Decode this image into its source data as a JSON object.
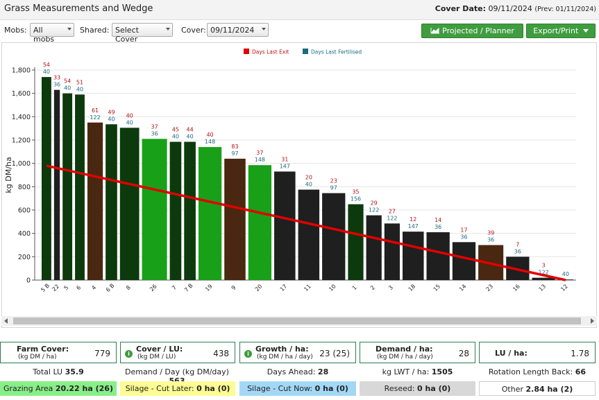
{
  "header": {
    "title": "Grass Measurements and Wedge",
    "cover_label": "Cover Date:",
    "cover_date": "09/11/2024",
    "prev": "(Prev: 01/11/2024)"
  },
  "filters": {
    "mobs_label": "Mobs:",
    "mobs_value": "All mobs",
    "shared_label": "Shared:",
    "shared_value": "Select Cover",
    "cover_label": "Cover:",
    "cover_value": "09/11/2024"
  },
  "buttons": {
    "projected": "Projected / Planner",
    "export": "Export/Print"
  },
  "colors": {
    "dark_green": "#0d3a0d",
    "bright_green": "#19a019",
    "brown": "#4a2710",
    "black": "#1f1f1f",
    "trend": "#e10000",
    "exit": "#b31212",
    "fert": "#1a6b80"
  },
  "chart_data": {
    "type": "bar",
    "ylabel": "kg DM/ha",
    "ylim": [
      0,
      1800
    ],
    "yticks": [
      "0",
      "200",
      "400",
      "600",
      "800",
      "1,000",
      "1,200",
      "1,400",
      "1,600",
      "1,800"
    ],
    "legend": [
      "Days Last Exit",
      "Days Last Fertilised"
    ],
    "legend_position": "top-center",
    "categories": [
      "5 B",
      "22",
      "5",
      "6",
      "4",
      "6 B",
      "8",
      "26",
      "7",
      "7 B",
      "19",
      "9",
      "20",
      "17",
      "11",
      "10",
      "1",
      "2",
      "3",
      "18",
      "15",
      "14",
      "23",
      "16",
      "13",
      "12"
    ],
    "values": [
      1740,
      1630,
      1600,
      1590,
      1350,
      1335,
      1305,
      1210,
      1185,
      1185,
      1140,
      1040,
      985,
      930,
      775,
      745,
      650,
      555,
      485,
      415,
      410,
      325,
      300,
      200,
      20,
      5
    ],
    "days_last_exit": [
      "54",
      "33",
      "54",
      "51",
      "61",
      "49",
      "40",
      "37",
      "45",
      "44",
      "40",
      "83",
      "37",
      "31",
      "20",
      "23",
      "35",
      "29",
      "27",
      "12",
      "14",
      "17",
      "39",
      "7",
      "3",
      ""
    ],
    "days_last_fertilised": [
      "40",
      "36",
      "40",
      "40",
      "122",
      "40",
      "40",
      "36",
      "40",
      "40",
      "148",
      "97",
      "148",
      "147",
      "40",
      "97",
      "156",
      "122",
      "122",
      "147",
      "36",
      "36",
      "36",
      "36",
      "122",
      "40"
    ],
    "bar_colors": [
      "dark_green",
      "black",
      "dark_green",
      "dark_green",
      "brown",
      "dark_green",
      "dark_green",
      "bright_green",
      "dark_green",
      "dark_green",
      "bright_green",
      "brown",
      "bright_green",
      "black",
      "black",
      "black",
      "dark_green",
      "black",
      "black",
      "black",
      "black",
      "black",
      "brown",
      "black",
      "black",
      "black"
    ],
    "trend": {
      "from": [
        0,
        980
      ],
      "to": [
        25,
        0
      ]
    }
  },
  "cards": {
    "farm_cover": {
      "label": "Farm Cover:",
      "sub": "(kg DM / ha)",
      "value": "779"
    },
    "cover_lu": {
      "label": "Cover / LU:",
      "sub": "(kg DM / LU)",
      "value": "438"
    },
    "growth": {
      "label": "Growth / ha:",
      "sub": "(kg DM / ha / day)",
      "value": "23 (25)"
    },
    "demand": {
      "label": "Demand / ha:",
      "sub": "(kg DM / ha / day)",
      "value": "28"
    },
    "lu_ha": {
      "label": "LU / ha:",
      "value": "1.78"
    }
  },
  "stats": {
    "total_lu": {
      "label": "Total LU",
      "value": "35.9"
    },
    "demand_day": {
      "label": "Demand / Day (kg DM/day)",
      "value": "563"
    },
    "days_ahead": {
      "label": "Days Ahead:",
      "value": "28"
    },
    "kg_lwt": {
      "label": "kg LWT / ha:",
      "value": "1505"
    },
    "rotation": {
      "label": "Rotation Length Back:",
      "value": "66"
    },
    "grazing": {
      "label": "Grazing Area",
      "value": "20.22 ha (26)"
    },
    "silage_later": {
      "label": "Silage - Cut Later:",
      "value": "0 ha (0)"
    },
    "silage_now": {
      "label": "Silage - Cut Now:",
      "value": "0 ha (0)"
    },
    "reseed": {
      "label": "Reseed:",
      "value": "0 ha (0)"
    },
    "other": {
      "label": "Other",
      "value": "2.84 ha (2)"
    }
  }
}
